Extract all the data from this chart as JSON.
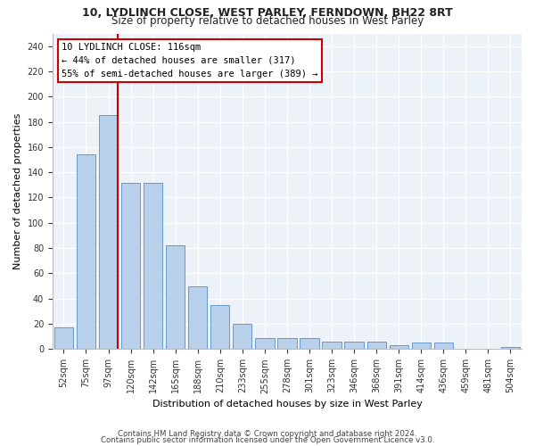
{
  "title1": "10, LYDLINCH CLOSE, WEST PARLEY, FERNDOWN, BH22 8RT",
  "title2": "Size of property relative to detached houses in West Parley",
  "xlabel": "Distribution of detached houses by size in West Parley",
  "ylabel": "Number of detached properties",
  "bar_color": "#b8d0ea",
  "bar_edge_color": "#6699cc",
  "categories": [
    "52sqm",
    "75sqm",
    "97sqm",
    "120sqm",
    "142sqm",
    "165sqm",
    "188sqm",
    "210sqm",
    "233sqm",
    "255sqm",
    "278sqm",
    "301sqm",
    "323sqm",
    "346sqm",
    "368sqm",
    "391sqm",
    "414sqm",
    "436sqm",
    "459sqm",
    "481sqm",
    "504sqm"
  ],
  "values": [
    17,
    154,
    185,
    132,
    132,
    82,
    50,
    35,
    20,
    9,
    9,
    9,
    6,
    6,
    6,
    3,
    5,
    5,
    0,
    0,
    2
  ],
  "ylim": [
    0,
    250
  ],
  "yticks": [
    0,
    20,
    40,
    60,
    80,
    100,
    120,
    140,
    160,
    180,
    200,
    220,
    240
  ],
  "line_color": "#cc0000",
  "annotation_line1": "10 LYDLINCH CLOSE: 116sqm",
  "annotation_line2": "← 44% of detached houses are smaller (317)",
  "annotation_line3": "55% of semi-detached houses are larger (389) →",
  "annotation_box_facecolor": "#ffffff",
  "annotation_box_edgecolor": "#cc0000",
  "background_color": "#edf2f9",
  "grid_color": "#ffffff",
  "footer1": "Contains HM Land Registry data © Crown copyright and database right 2024.",
  "footer2": "Contains public sector information licensed under the Open Government Licence v3.0."
}
